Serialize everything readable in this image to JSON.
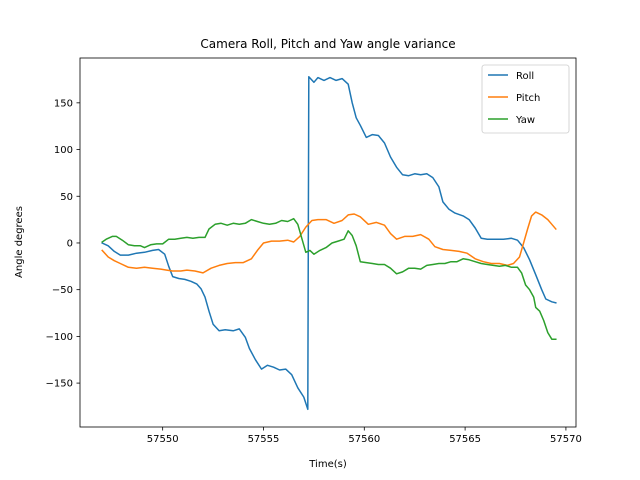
{
  "chart_data": {
    "type": "line",
    "title": "Camera Roll, Pitch and Yaw angle variance",
    "xlabel": "Time(s)",
    "ylabel": "Angle degrees",
    "xlim": [
      57545.9,
      57570.5
    ],
    "ylim": [
      -197,
      198
    ],
    "xticks": [
      57550,
      57555,
      57560,
      57565,
      57570
    ],
    "yticks": [
      -150,
      -100,
      -50,
      0,
      50,
      100,
      150
    ],
    "grid": false,
    "legend_position": "top-right",
    "series": [
      {
        "name": "Roll",
        "color": "#1f77b4",
        "points": [
          [
            57547.0,
            0
          ],
          [
            57547.3,
            -3
          ],
          [
            57547.6,
            -9
          ],
          [
            57547.9,
            -13
          ],
          [
            57548.3,
            -13
          ],
          [
            57548.7,
            -11
          ],
          [
            57549.1,
            -10
          ],
          [
            57549.5,
            -8
          ],
          [
            57549.8,
            -7
          ],
          [
            57550.1,
            -12
          ],
          [
            57550.3,
            -25
          ],
          [
            57550.5,
            -36
          ],
          [
            57550.8,
            -38
          ],
          [
            57551.1,
            -39
          ],
          [
            57551.4,
            -41
          ],
          [
            57551.7,
            -44
          ],
          [
            57551.9,
            -49
          ],
          [
            57552.1,
            -58
          ],
          [
            57552.3,
            -73
          ],
          [
            57552.5,
            -87
          ],
          [
            57552.8,
            -94
          ],
          [
            57553.1,
            -93
          ],
          [
            57553.5,
            -94
          ],
          [
            57553.8,
            -92
          ],
          [
            57554.1,
            -101
          ],
          [
            57554.3,
            -113
          ],
          [
            57554.6,
            -125
          ],
          [
            57554.9,
            -135
          ],
          [
            57555.2,
            -131
          ],
          [
            57555.5,
            -133
          ],
          [
            57555.8,
            -136
          ],
          [
            57556.1,
            -135
          ],
          [
            57556.4,
            -141
          ],
          [
            57556.7,
            -155
          ],
          [
            57557.0,
            -165
          ],
          [
            57557.2,
            -178
          ],
          [
            57557.25,
            178
          ],
          [
            57557.5,
            172
          ],
          [
            57557.7,
            177
          ],
          [
            57558.0,
            174
          ],
          [
            57558.3,
            177
          ],
          [
            57558.6,
            174
          ],
          [
            57558.9,
            176
          ],
          [
            57559.2,
            170
          ],
          [
            57559.4,
            150
          ],
          [
            57559.6,
            134
          ],
          [
            57559.8,
            126
          ],
          [
            57560.1,
            113
          ],
          [
            57560.4,
            116
          ],
          [
            57560.7,
            115
          ],
          [
            57561.0,
            107
          ],
          [
            57561.3,
            92
          ],
          [
            57561.6,
            81
          ],
          [
            57561.9,
            73
          ],
          [
            57562.2,
            72
          ],
          [
            57562.5,
            74
          ],
          [
            57562.8,
            73
          ],
          [
            57563.1,
            74
          ],
          [
            57563.4,
            70
          ],
          [
            57563.7,
            60
          ],
          [
            57563.9,
            44
          ],
          [
            57564.2,
            36
          ],
          [
            57564.5,
            32
          ],
          [
            57564.9,
            29
          ],
          [
            57565.2,
            25
          ],
          [
            57565.5,
            16
          ],
          [
            57565.8,
            5
          ],
          [
            57566.1,
            4
          ],
          [
            57566.5,
            4
          ],
          [
            57566.9,
            4
          ],
          [
            57567.3,
            5
          ],
          [
            57567.6,
            3
          ],
          [
            57567.9,
            -5
          ],
          [
            57568.2,
            -18
          ],
          [
            57568.5,
            -34
          ],
          [
            57568.8,
            -50
          ],
          [
            57569.0,
            -60
          ],
          [
            57569.3,
            -63
          ],
          [
            57569.5,
            -64
          ]
        ]
      },
      {
        "name": "Pitch",
        "color": "#ff7f0e",
        "points": [
          [
            57547.0,
            -8
          ],
          [
            57547.3,
            -15
          ],
          [
            57547.6,
            -19
          ],
          [
            57547.9,
            -22
          ],
          [
            57548.3,
            -26
          ],
          [
            57548.7,
            -27
          ],
          [
            57549.1,
            -26
          ],
          [
            57549.5,
            -27
          ],
          [
            57549.9,
            -28
          ],
          [
            57550.2,
            -29
          ],
          [
            57550.5,
            -30
          ],
          [
            57550.9,
            -30
          ],
          [
            57551.2,
            -29
          ],
          [
            57551.6,
            -30
          ],
          [
            57552.0,
            -32
          ],
          [
            57552.4,
            -27
          ],
          [
            57552.8,
            -24
          ],
          [
            57553.2,
            -22
          ],
          [
            57553.6,
            -21
          ],
          [
            57554.0,
            -21
          ],
          [
            57554.4,
            -17
          ],
          [
            57554.7,
            -8
          ],
          [
            57555.0,
            0
          ],
          [
            57555.4,
            2
          ],
          [
            57555.8,
            2
          ],
          [
            57556.2,
            3
          ],
          [
            57556.5,
            1
          ],
          [
            57556.8,
            7
          ],
          [
            57557.1,
            17
          ],
          [
            57557.4,
            24
          ],
          [
            57557.7,
            25
          ],
          [
            57558.1,
            25
          ],
          [
            57558.5,
            21
          ],
          [
            57558.9,
            24
          ],
          [
            57559.2,
            30
          ],
          [
            57559.5,
            31
          ],
          [
            57559.8,
            28
          ],
          [
            57560.2,
            20
          ],
          [
            57560.6,
            22
          ],
          [
            57561.0,
            19
          ],
          [
            57561.3,
            10
          ],
          [
            57561.6,
            4
          ],
          [
            57562.0,
            7
          ],
          [
            57562.4,
            7
          ],
          [
            57562.8,
            9
          ],
          [
            57563.2,
            4
          ],
          [
            57563.5,
            -4
          ],
          [
            57563.9,
            -7
          ],
          [
            57564.3,
            -8
          ],
          [
            57564.7,
            -9
          ],
          [
            57565.1,
            -11
          ],
          [
            57565.5,
            -17
          ],
          [
            57565.9,
            -20
          ],
          [
            57566.3,
            -22
          ],
          [
            57566.7,
            -22
          ],
          [
            57567.1,
            -24
          ],
          [
            57567.4,
            -22
          ],
          [
            57567.7,
            -15
          ],
          [
            57567.9,
            0
          ],
          [
            57568.1,
            15
          ],
          [
            57568.3,
            29
          ],
          [
            57568.5,
            33
          ],
          [
            57568.8,
            30
          ],
          [
            57569.1,
            25
          ],
          [
            57569.3,
            20
          ],
          [
            57569.5,
            15
          ]
        ]
      },
      {
        "name": "Yaw",
        "color": "#2ca02c",
        "points": [
          [
            57547.0,
            1
          ],
          [
            57547.2,
            4
          ],
          [
            57547.5,
            7
          ],
          [
            57547.7,
            7
          ],
          [
            57548.0,
            3
          ],
          [
            57548.3,
            -2
          ],
          [
            57548.6,
            -3
          ],
          [
            57548.9,
            -3
          ],
          [
            57549.1,
            -5
          ],
          [
            57549.4,
            -2
          ],
          [
            57549.7,
            -1
          ],
          [
            57550.0,
            -1
          ],
          [
            57550.3,
            4
          ],
          [
            57550.6,
            4
          ],
          [
            57550.9,
            5
          ],
          [
            57551.2,
            6
          ],
          [
            57551.5,
            5
          ],
          [
            57551.8,
            6
          ],
          [
            57552.1,
            6
          ],
          [
            57552.3,
            15
          ],
          [
            57552.6,
            20
          ],
          [
            57552.9,
            21
          ],
          [
            57553.2,
            19
          ],
          [
            57553.5,
            21
          ],
          [
            57553.8,
            20
          ],
          [
            57554.1,
            21
          ],
          [
            57554.4,
            25
          ],
          [
            57554.7,
            23
          ],
          [
            57555.0,
            21
          ],
          [
            57555.3,
            20
          ],
          [
            57555.6,
            21
          ],
          [
            57555.9,
            24
          ],
          [
            57556.2,
            23
          ],
          [
            57556.5,
            26
          ],
          [
            57556.7,
            20
          ],
          [
            57556.9,
            5
          ],
          [
            57557.1,
            -10
          ],
          [
            57557.3,
            -8
          ],
          [
            57557.5,
            -12
          ],
          [
            57557.8,
            -8
          ],
          [
            57558.1,
            -5
          ],
          [
            57558.4,
            0
          ],
          [
            57558.7,
            2
          ],
          [
            57559.0,
            4
          ],
          [
            57559.2,
            13
          ],
          [
            57559.4,
            8
          ],
          [
            57559.6,
            -3
          ],
          [
            57559.8,
            -20
          ],
          [
            57560.1,
            -21
          ],
          [
            57560.4,
            -22
          ],
          [
            57560.7,
            -23
          ],
          [
            57561.0,
            -23
          ],
          [
            57561.3,
            -27
          ],
          [
            57561.6,
            -33
          ],
          [
            57561.9,
            -31
          ],
          [
            57562.2,
            -27
          ],
          [
            57562.5,
            -27
          ],
          [
            57562.8,
            -28
          ],
          [
            57563.1,
            -24
          ],
          [
            57563.4,
            -23
          ],
          [
            57563.7,
            -22
          ],
          [
            57564.0,
            -22
          ],
          [
            57564.3,
            -20
          ],
          [
            57564.6,
            -20
          ],
          [
            57564.9,
            -17
          ],
          [
            57565.2,
            -18
          ],
          [
            57565.5,
            -20
          ],
          [
            57565.8,
            -22
          ],
          [
            57566.1,
            -23
          ],
          [
            57566.4,
            -24
          ],
          [
            57566.7,
            -25
          ],
          [
            57567.0,
            -24
          ],
          [
            57567.3,
            -26
          ],
          [
            57567.6,
            -26
          ],
          [
            57567.8,
            -32
          ],
          [
            57568.0,
            -45
          ],
          [
            57568.2,
            -50
          ],
          [
            57568.4,
            -58
          ],
          [
            57568.5,
            -69
          ],
          [
            57568.7,
            -73
          ],
          [
            57568.9,
            -83
          ],
          [
            57569.1,
            -96
          ],
          [
            57569.3,
            -103
          ],
          [
            57569.5,
            -103
          ]
        ]
      }
    ]
  }
}
